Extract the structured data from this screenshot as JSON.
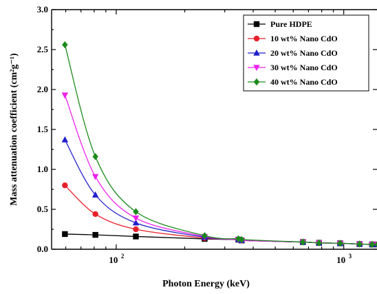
{
  "chart_data": {
    "type": "line",
    "title": "",
    "xlabel": "Photon Energy (keV)",
    "ylabel": "Mass attenuation coefficient (cm²g⁻¹)",
    "xscale": "log",
    "xlim": [
      52,
      1400
    ],
    "ylim": [
      0.0,
      3.0
    ],
    "y_ticks": [
      "0.0",
      "0.5",
      "1.0",
      "1.5",
      "2.0",
      "2.5",
      "3.0"
    ],
    "x_ticks": [
      {
        "value": 100,
        "label": "10",
        "exp": "2"
      },
      {
        "value": 1000,
        "label": "10",
        "exp": "3"
      }
    ],
    "grid": false,
    "legend_position": "top-right",
    "x": [
      59.5,
      81,
      122,
      244.7,
      344.3,
      356,
      661.6,
      778.9,
      964.1,
      1173.2,
      1332.5,
      1408
    ],
    "series": [
      {
        "name": "Pure HDPE",
        "color": "#000000",
        "marker": "square",
        "values": [
          0.19,
          0.18,
          0.16,
          0.13,
          0.12,
          0.11,
          0.09,
          0.08,
          0.075,
          0.065,
          0.06,
          0.06
        ]
      },
      {
        "name": "10 wt% Nano CdO",
        "color": "#e8202a",
        "marker": "circle",
        "values": [
          0.8,
          0.44,
          0.25,
          0.14,
          0.12,
          0.11,
          0.09,
          0.08,
          0.075,
          0.065,
          0.06,
          0.06
        ]
      },
      {
        "name": "20 wt% Nano CdO",
        "color": "#1f1fcc",
        "marker": "triangle-up",
        "values": [
          1.37,
          0.68,
          0.33,
          0.15,
          0.12,
          0.11,
          0.09,
          0.08,
          0.075,
          0.065,
          0.06,
          0.06
        ]
      },
      {
        "name": "30 wt% Nano CdO",
        "color": "#ee22ee",
        "marker": "triangle-down",
        "values": [
          1.93,
          0.91,
          0.39,
          0.16,
          0.12,
          0.11,
          0.09,
          0.08,
          0.075,
          0.065,
          0.06,
          0.06
        ]
      },
      {
        "name": "40 wt% Nano CdO",
        "color": "#1a8a1a",
        "marker": "diamond",
        "values": [
          2.56,
          1.16,
          0.47,
          0.17,
          0.13,
          0.12,
          0.09,
          0.08,
          0.075,
          0.065,
          0.06,
          0.06
        ]
      }
    ]
  }
}
